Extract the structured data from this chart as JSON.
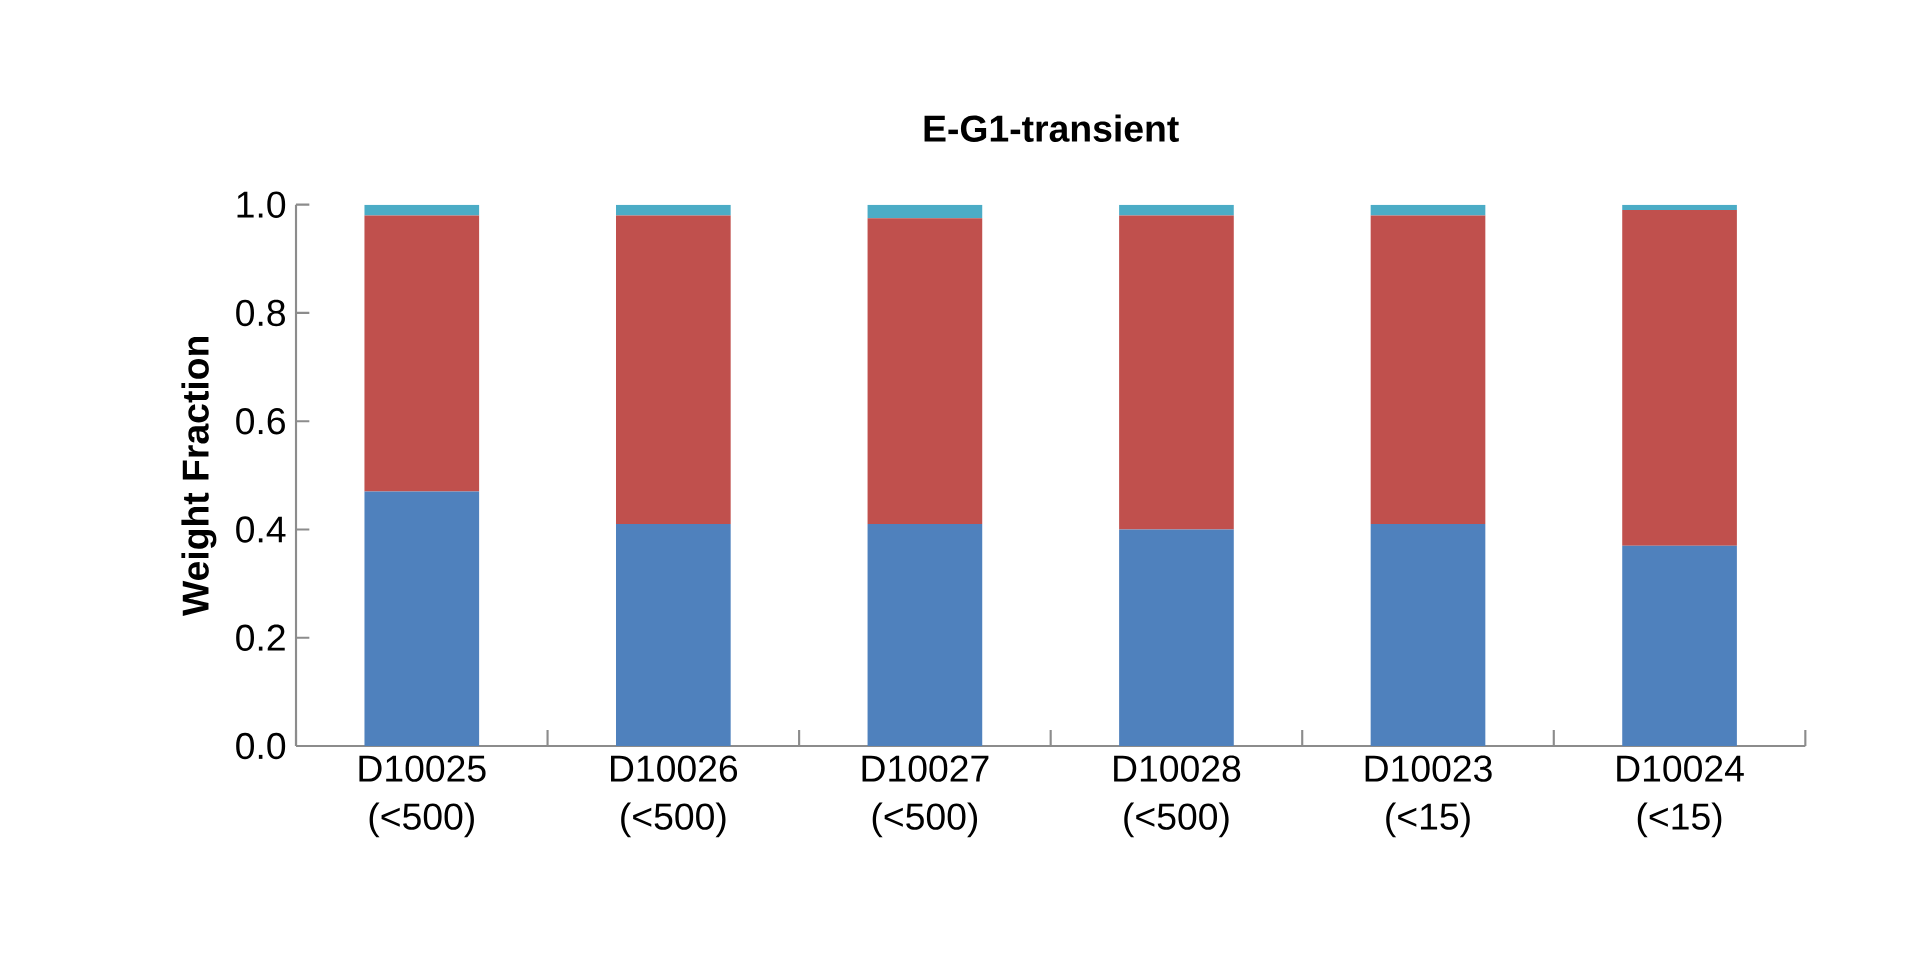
{
  "chart_data": {
    "type": "bar",
    "title": "E-G1-transient",
    "ylabel": "Weight Fraction",
    "stacked": true,
    "categories": [
      "D10025 (<500)",
      "D10026 (<500)",
      "D10027 (<500)",
      "D10028 (<500)",
      "D10023 (<15)",
      "D10024 (<15)"
    ],
    "series": [
      {
        "color": "#4f81bd",
        "values": [
          0.47,
          0.41,
          0.41,
          0.4,
          0.41,
          0.37
        ]
      },
      {
        "color": "#c0504d",
        "values": [
          0.51,
          0.57,
          0.565,
          0.58,
          0.57,
          0.62
        ]
      },
      {
        "color": "#4bacc6",
        "values": [
          0.02,
          0.02,
          0.025,
          0.02,
          0.02,
          0.01
        ]
      }
    ],
    "ylim": [
      0,
      1
    ],
    "yticks": [
      {
        "value": 0,
        "label": "0.0"
      },
      {
        "value": 0.2,
        "label": "0.2"
      },
      {
        "value": 0.4,
        "label": "0.4"
      },
      {
        "value": 0.6,
        "label": "0.6"
      },
      {
        "value": 0.8,
        "label": "0.8"
      },
      {
        "value": 1,
        "label": "1.0"
      }
    ],
    "grid": false
  }
}
